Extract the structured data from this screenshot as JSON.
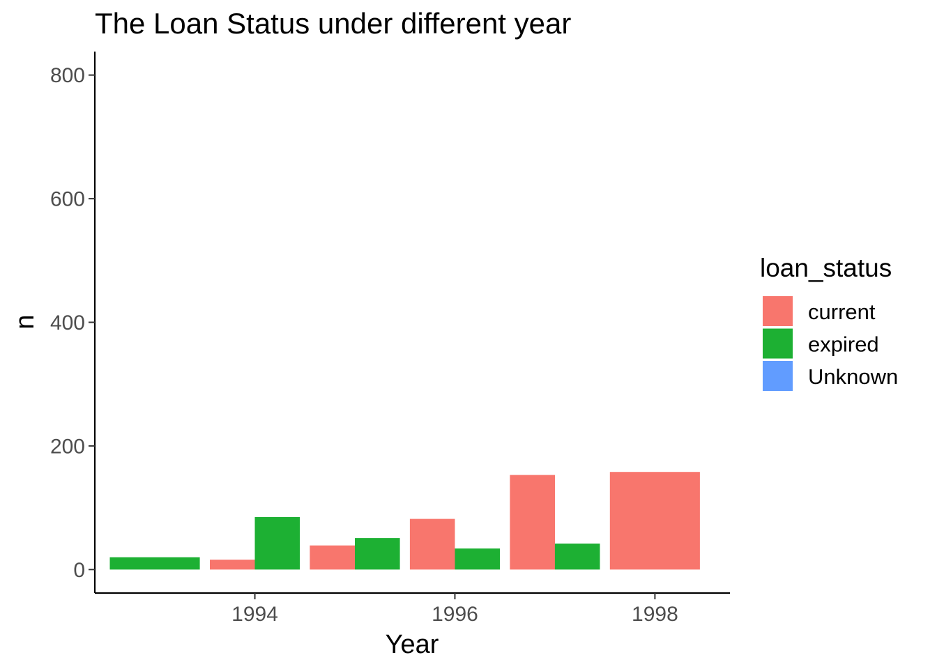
{
  "chart_data": {
    "type": "bar",
    "title": "The Loan Status under different year",
    "xlabel": "Year",
    "ylabel": "n",
    "xlim": [
      1992.4,
      1998.75
    ],
    "ylim": [
      -38,
      838
    ],
    "x_ticks": [
      1994,
      1996,
      1998
    ],
    "y_ticks": [
      0,
      200,
      400,
      600,
      800
    ],
    "grid": false,
    "legend": {
      "title": "loan_status",
      "position": "right",
      "entries": [
        "current",
        "expired",
        "Unknown"
      ]
    },
    "colors": {
      "current": "#F8766D",
      "expired": "#1DB033",
      "Unknown": "#619CFF"
    },
    "categories": [
      1993,
      1994,
      1995,
      1996,
      1997,
      1998
    ],
    "series": [
      {
        "name": "current",
        "values": [
          0,
          16,
          39,
          82,
          153,
          158
        ]
      },
      {
        "name": "expired",
        "values": [
          20,
          85,
          51,
          34,
          42,
          0
        ]
      },
      {
        "name": "Unknown",
        "values": [
          0,
          0,
          0,
          0,
          0,
          0
        ]
      }
    ]
  }
}
